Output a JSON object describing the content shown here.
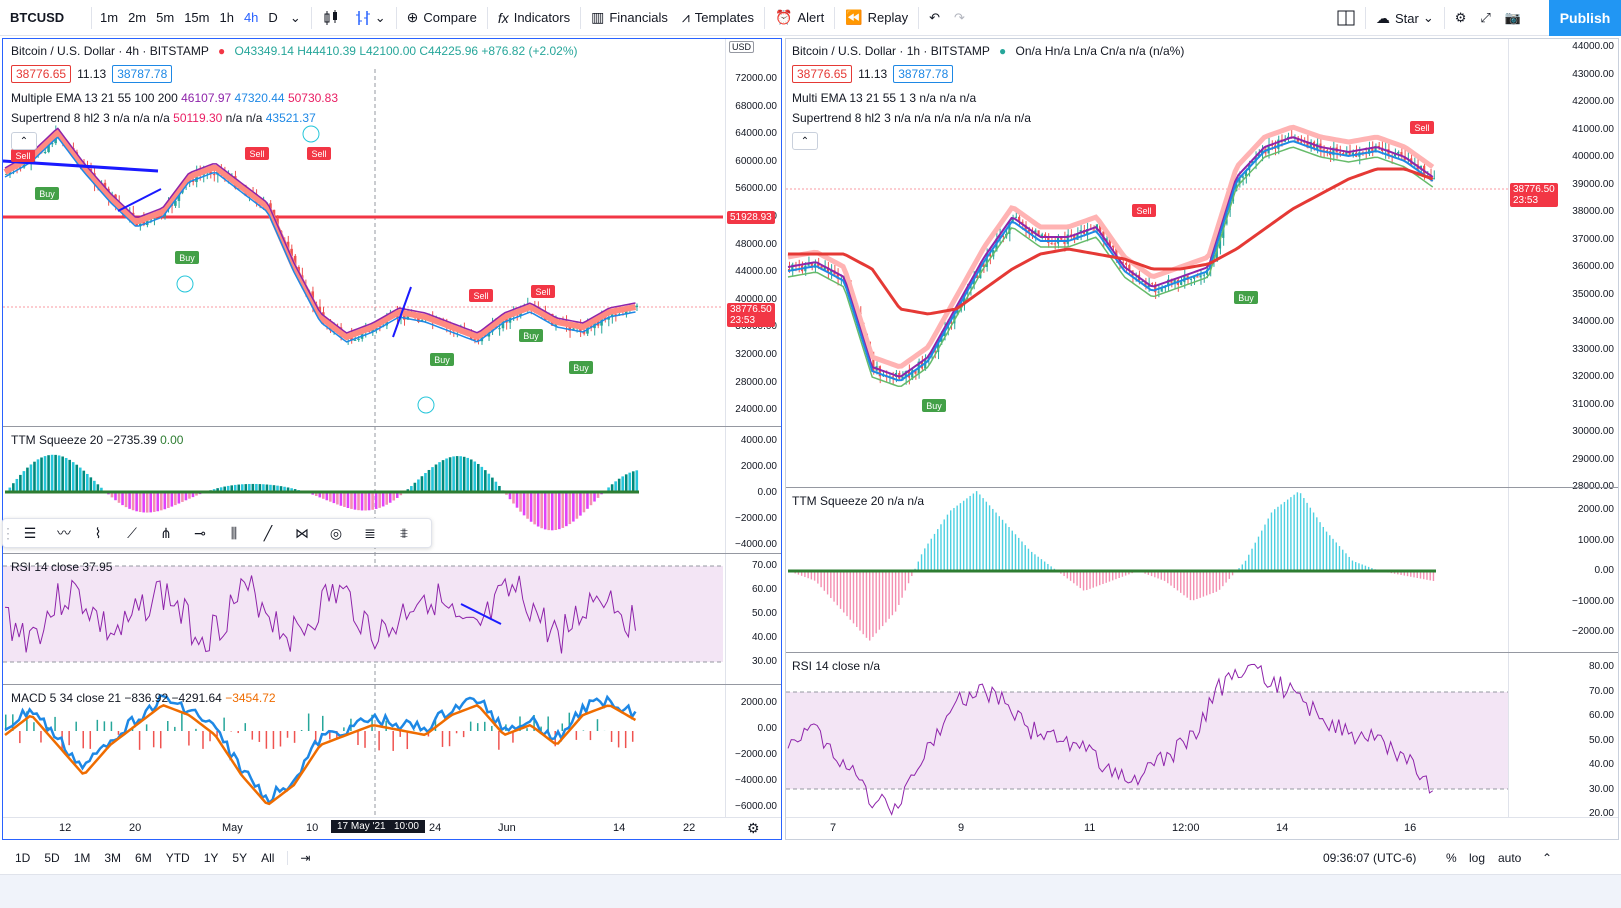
{
  "toolbar": {
    "symbol": "BTCUSD",
    "timeframes": [
      "1m",
      "2m",
      "5m",
      "15m",
      "1h",
      "4h",
      "D"
    ],
    "active_timeframe": "4h",
    "compare": "Compare",
    "indicators": "Indicators",
    "financials": "Financials",
    "templates": "Templates",
    "alert": "Alert",
    "replay": "Replay",
    "layout_name": "Star",
    "publish": "Publish"
  },
  "left": {
    "title": "Bitcoin / U.S. Dollar · 4h · BITSTAMP",
    "ohlc": "O43349.14 H44410.39 L42100.00 C44225.96 +876.82 (+2.02%)",
    "bid": "38776.65",
    "spread": "11.13",
    "ask": "38787.78",
    "ema_label": "Multiple EMA 13 21 55 100 200",
    "ema_v1": "46107.97",
    "ema_v2": "47320.44",
    "ema_v3": "50730.83",
    "st_label": "Supertrend 8 hl2 3",
    "st_na": "n/a n/a n/a",
    "st_v1": "50119.30",
    "st_na2": "n/a n/a",
    "st_v2": "43521.37",
    "currency": "USD",
    "price_ticks": [
      "72000.00",
      "68000.00",
      "64000.00",
      "60000.00",
      "56000.00",
      "52000.00",
      "48000.00",
      "44000.00",
      "40000.00",
      "36000.00",
      "32000.00",
      "28000.00",
      "24000.00"
    ],
    "hline_price": "51928.93",
    "last_price": "38776.50",
    "countdown": "23:53",
    "ttm_label": "TTM Squeeze 20",
    "ttm_v1": "−2735.39",
    "ttm_v2": "0.00",
    "ttm_ticks": [
      "4000.00",
      "2000.00",
      "0.00",
      "−2000.00",
      "−4000.00"
    ],
    "rsi_label": "RSI 14 close",
    "rsi_v": "37.95",
    "rsi_ticks": [
      "70.00",
      "60.00",
      "50.00",
      "40.00",
      "30.00"
    ],
    "macd_label": "MACD 5 34 close 21",
    "macd_v1": "−836.92",
    "macd_v2": "−4291.64",
    "macd_v3": "−3454.72",
    "macd_ticks": [
      "2000.00",
      "0.00",
      "−2000.00",
      "−4000.00",
      "−6000.00"
    ],
    "x_labels": [
      "12",
      "20",
      "May",
      "10",
      "24",
      "Jun",
      "14",
      "22"
    ],
    "crosshair_date": "17 May '21",
    "crosshair_time": "10:00"
  },
  "right": {
    "title": "Bitcoin / U.S. Dollar · 1h · BITSTAMP",
    "ohlc": "On/a Hn/a Ln/a Cn/a n/a (n/a%)",
    "bid": "38776.65",
    "spread": "11.13",
    "ask": "38787.78",
    "ema_label": "Multi EMA 13 21 55 1 3",
    "ema_na": "n/a n/a n/a",
    "st_label": "Supertrend 8 hl2 3",
    "st_na": "n/a n/a n/a n/a n/a n/a n/a",
    "price_ticks": [
      "44000.00",
      "43000.00",
      "42000.00",
      "41000.00",
      "40000.00",
      "39000.00",
      "38000.00",
      "37000.00",
      "36000.00",
      "35000.00",
      "34000.00",
      "33000.00",
      "32000.00",
      "31000.00",
      "30000.00",
      "29000.00",
      "28000.00"
    ],
    "last_price": "38776.50",
    "countdown": "23:53",
    "ttm_label": "TTM Squeeze 20",
    "ttm_na": "n/a n/a",
    "ttm_ticks": [
      "2000.00",
      "1000.00",
      "0.00",
      "−1000.00",
      "−2000.00"
    ],
    "rsi_label": "RSI 14 close",
    "rsi_na": "n/a",
    "rsi_ticks": [
      "80.00",
      "70.00",
      "60.00",
      "50.00",
      "40.00",
      "30.00",
      "20.00"
    ],
    "x_labels": [
      "7",
      "9",
      "11",
      "12:00",
      "14",
      "16"
    ]
  },
  "bottom": {
    "ranges": [
      "1D",
      "5D",
      "1M",
      "3M",
      "6M",
      "YTD",
      "1Y",
      "5Y",
      "All"
    ],
    "time": "09:36:07 (UTC-6)",
    "percent": "%",
    "log": "log",
    "auto": "auto"
  },
  "signals": {
    "buy": "Buy",
    "sell": "Sell"
  },
  "colors": {
    "accent": "#2962ff",
    "publish": "#2196f3",
    "buy": "#43a047",
    "sell": "#f23645",
    "ema_fast": "#8e24aa",
    "ema_mid": "#1e88e5",
    "ema_slow": "#e53935"
  }
}
